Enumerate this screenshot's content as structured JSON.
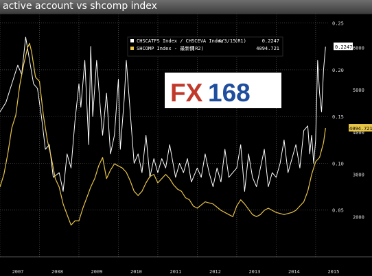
{
  "chart_data": {
    "type": "line",
    "title": "active account vs shcomp index",
    "legend_placement": "top-center",
    "grid": true,
    "x_axis": {
      "labels": [
        "2007",
        "2008",
        "2009",
        "2010",
        "2011",
        "2012",
        "2013",
        "2014",
        "2015"
      ],
      "range": [
        2007.0,
        2015.35
      ]
    },
    "y_left": {
      "ticks": [
        "0.05",
        "0.10",
        "0.15",
        "0.20",
        "0.25"
      ],
      "range": [
        0.0,
        0.26
      ]
    },
    "y_right": {
      "ticks": [
        "2000",
        "3000",
        "4000",
        "5000",
        "6000"
      ],
      "range": [
        1050,
        6800
      ]
    },
    "series": [
      {
        "name": "CHSCATFS Index / CHSCEVA Index",
        "axis": "R1",
        "date_label": "4/3/15",
        "last_value": "0.2247",
        "color": "#ffffff",
        "x": [
          2007.0,
          2007.15,
          2007.3,
          2007.45,
          2007.55,
          2007.65,
          2007.75,
          2007.85,
          2007.95,
          2008.05,
          2008.15,
          2008.25,
          2008.35,
          2008.5,
          2008.6,
          2008.7,
          2008.8,
          2008.9,
          2009.0,
          2009.05,
          2009.15,
          2009.25,
          2009.3,
          2009.35,
          2009.45,
          2009.55,
          2009.6,
          2009.7,
          2009.8,
          2009.9,
          2010.0,
          2010.05,
          2010.15,
          2010.2,
          2010.3,
          2010.4,
          2010.5,
          2010.6,
          2010.7,
          2010.8,
          2010.85,
          2010.9,
          2011.0,
          2011.1,
          2011.2,
          2011.3,
          2011.45,
          2011.55,
          2011.65,
          2011.75,
          2011.85,
          2012.0,
          2012.1,
          2012.2,
          2012.3,
          2012.4,
          2012.5,
          2012.6,
          2012.7,
          2012.8,
          2012.9,
          2013.0,
          2013.1,
          2013.2,
          2013.3,
          2013.4,
          2013.5,
          2013.6,
          2013.7,
          2013.8,
          2013.9,
          2014.0,
          2014.1,
          2014.2,
          2014.3,
          2014.4,
          2014.5,
          2014.6,
          2014.7,
          2014.8,
          2014.85,
          2014.9,
          2014.95,
          2015.0,
          2015.05,
          2015.1,
          2015.15,
          2015.2,
          2015.25
        ],
        "y": [
          0.155,
          0.165,
          0.185,
          0.205,
          0.195,
          0.235,
          0.21,
          0.185,
          0.18,
          0.15,
          0.115,
          0.12,
          0.085,
          0.09,
          0.07,
          0.11,
          0.095,
          0.145,
          0.185,
          0.16,
          0.21,
          0.12,
          0.225,
          0.15,
          0.21,
          0.155,
          0.13,
          0.175,
          0.11,
          0.13,
          0.19,
          0.115,
          0.17,
          0.21,
          0.155,
          0.1,
          0.11,
          0.09,
          0.13,
          0.085,
          0.095,
          0.105,
          0.09,
          0.105,
          0.095,
          0.12,
          0.085,
          0.1,
          0.09,
          0.105,
          0.08,
          0.095,
          0.085,
          0.11,
          0.09,
          0.075,
          0.095,
          0.08,
          0.115,
          0.085,
          0.09,
          0.095,
          0.12,
          0.07,
          0.11,
          0.085,
          0.075,
          0.095,
          0.115,
          0.075,
          0.09,
          0.085,
          0.1,
          0.125,
          0.09,
          0.105,
          0.12,
          0.095,
          0.135,
          0.14,
          0.11,
          0.13,
          0.1,
          0.125,
          0.21,
          0.175,
          0.155,
          0.2,
          0.2247
        ]
      },
      {
        "name": "SHCOMP Index - 最新價",
        "axis": "R2",
        "last_value": "4094.721",
        "color": "#e8c547",
        "x": [
          2007.0,
          2007.1,
          2007.2,
          2007.3,
          2007.4,
          2007.5,
          2007.6,
          2007.7,
          2007.75,
          2007.8,
          2007.9,
          2008.0,
          2008.1,
          2008.2,
          2008.3,
          2008.4,
          2008.5,
          2008.6,
          2008.7,
          2008.8,
          2008.9,
          2009.0,
          2009.1,
          2009.2,
          2009.3,
          2009.4,
          2009.5,
          2009.6,
          2009.7,
          2009.8,
          2009.9,
          2010.0,
          2010.1,
          2010.2,
          2010.3,
          2010.4,
          2010.5,
          2010.6,
          2010.7,
          2010.8,
          2010.9,
          2011.0,
          2011.1,
          2011.2,
          2011.3,
          2011.4,
          2011.5,
          2011.6,
          2011.7,
          2011.8,
          2011.9,
          2012.0,
          2012.2,
          2012.4,
          2012.6,
          2012.8,
          2012.9,
          2013.0,
          2013.1,
          2013.2,
          2013.4,
          2013.5,
          2013.6,
          2013.7,
          2013.8,
          2013.9,
          2014.0,
          2014.2,
          2014.4,
          2014.5,
          2014.6,
          2014.7,
          2014.8,
          2014.9,
          2015.0,
          2015.1,
          2015.2,
          2015.25
        ],
        "y": [
          2700,
          3000,
          3500,
          4100,
          4400,
          5100,
          5600,
          6000,
          6100,
          5900,
          5300,
          5200,
          4400,
          3800,
          3400,
          2900,
          2700,
          2300,
          2050,
          1800,
          1900,
          1900,
          2200,
          2450,
          2700,
          2900,
          3200,
          3400,
          2900,
          3100,
          3250,
          3200,
          3150,
          3050,
          2850,
          2600,
          2500,
          2600,
          2800,
          2950,
          3000,
          2800,
          2900,
          3000,
          2900,
          2750,
          2650,
          2600,
          2450,
          2400,
          2250,
          2200,
          2350,
          2300,
          2150,
          2050,
          2000,
          2250,
          2400,
          2300,
          2050,
          2000,
          2050,
          2150,
          2200,
          2150,
          2100,
          2050,
          2100,
          2150,
          2250,
          2350,
          2600,
          3000,
          3300,
          3400,
          3750,
          4094.721
        ]
      }
    ]
  },
  "watermark": "FX168"
}
